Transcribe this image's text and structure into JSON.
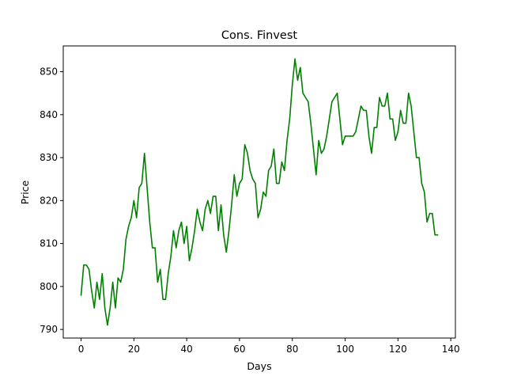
{
  "chart_data": {
    "type": "line",
    "title": "Cons. Finvest",
    "xlabel": "Days",
    "ylabel": "Price",
    "xlim": [
      -6.75,
      141.75
    ],
    "ylim": [
      788,
      856
    ],
    "xticks": [
      0,
      20,
      40,
      60,
      80,
      100,
      120,
      140
    ],
    "yticks": [
      790,
      800,
      810,
      820,
      830,
      840,
      850
    ],
    "grid": false,
    "legend": "none",
    "series": [
      {
        "color": "#008000",
        "x": [
          0,
          1,
          2,
          3,
          4,
          5,
          6,
          7,
          8,
          9,
          10,
          11,
          12,
          13,
          14,
          15,
          16,
          17,
          18,
          19,
          20,
          21,
          22,
          23,
          24,
          25,
          26,
          27,
          28,
          29,
          30,
          31,
          32,
          33,
          34,
          35,
          36,
          37,
          38,
          39,
          40,
          41,
          42,
          43,
          44,
          45,
          46,
          47,
          48,
          49,
          50,
          51,
          52,
          53,
          54,
          55,
          56,
          57,
          58,
          59,
          60,
          61,
          62,
          63,
          64,
          65,
          66,
          67,
          68,
          69,
          70,
          71,
          72,
          73,
          74,
          75,
          76,
          77,
          78,
          79,
          80,
          81,
          82,
          83,
          84,
          85,
          86,
          87,
          88,
          89,
          90,
          91,
          92,
          93,
          94,
          95,
          96,
          97,
          98,
          99,
          100,
          101,
          102,
          103,
          104,
          105,
          106,
          107,
          108,
          109,
          110,
          111,
          112,
          113,
          114,
          115,
          116,
          117,
          118,
          119,
          120,
          121,
          122,
          123,
          124,
          125,
          126,
          127,
          128,
          129,
          130,
          131,
          132,
          133,
          134,
          135
        ],
        "values": [
          798,
          805,
          805,
          804,
          799,
          795,
          801,
          797,
          803,
          795,
          791,
          795,
          801,
          795,
          802,
          801,
          804,
          811,
          814,
          816,
          820,
          816,
          823,
          824,
          831,
          823,
          815,
          809,
          809,
          801,
          804,
          797,
          797,
          803,
          807,
          813,
          809,
          813,
          815,
          810,
          814,
          806,
          809,
          813,
          818,
          815,
          813,
          818,
          820,
          817,
          821,
          821,
          813,
          819,
          812,
          808,
          813,
          819,
          826,
          821,
          824,
          825,
          833,
          831,
          827,
          825,
          824,
          816,
          818,
          822,
          821,
          827,
          828,
          832,
          824,
          824,
          829,
          827,
          834,
          839,
          847,
          853,
          848,
          851,
          845,
          844,
          843,
          838,
          832,
          826,
          834,
          831,
          832,
          835,
          839,
          843,
          844,
          845,
          839,
          833,
          835,
          835,
          835,
          835,
          836,
          839,
          842,
          841,
          841,
          835,
          831,
          837,
          837,
          844,
          842,
          842,
          845,
          839,
          839,
          834,
          836,
          841,
          838,
          838,
          845,
          842,
          836,
          830,
          830,
          824,
          822,
          815,
          817,
          817,
          812,
          812
        ]
      }
    ]
  }
}
